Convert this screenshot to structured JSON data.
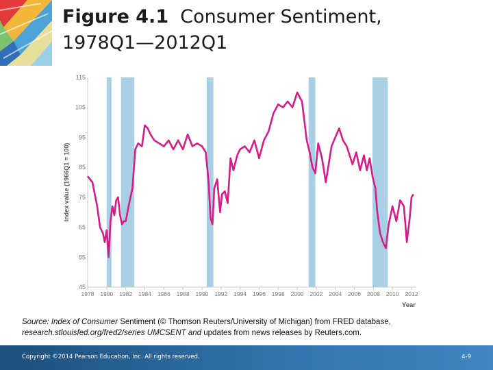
{
  "title": {
    "bold": "Figure 4.1",
    "rest": "Consumer Sentiment,",
    "line2": "1978Q1—2012Q1"
  },
  "source": {
    "label": "Source:",
    "italic1": "Index of Consumer",
    "plain1": "Sentiment (© Thomson Reuters/University of Michigan) from FRED database,",
    "italic2": "research.stlouisfed.org/fred2/series UMCSENT and",
    "plain2": "updates from news releases by Reuters.com."
  },
  "footer": {
    "copyright": "Copyright ©2014 Pearson Education, Inc. All rights reserved.",
    "page": "4-9"
  },
  "colors": {
    "line": "#d81b87",
    "recession": "#a9cfe6",
    "footer": "#2a66a0"
  },
  "chart_data": {
    "type": "line",
    "ylabel": "Index value (1966Q1 = 100)",
    "xlabel": "Year",
    "ylim": [
      45,
      115
    ],
    "xlim": [
      1978,
      2012.5
    ],
    "yticks": [
      45,
      55,
      65,
      75,
      85,
      95,
      105,
      115
    ],
    "xticks": [
      "1978",
      "1980",
      "1982",
      "1984",
      "1986",
      "1988",
      "1990",
      "1992",
      "1994",
      "1996",
      "1998",
      "2000",
      "2002",
      "2004",
      "2006",
      "2008",
      "2010",
      "2012"
    ],
    "recessions": [
      [
        1980.0,
        1980.5
      ],
      [
        1981.5,
        1982.9
      ],
      [
        1990.5,
        1991.2
      ],
      [
        2001.2,
        2001.9
      ],
      [
        2007.9,
        2009.5
      ]
    ],
    "series": [
      {
        "x": [
          1978.0,
          1978.5,
          1979.0,
          1979.3,
          1979.6,
          1979.8,
          1980.0,
          1980.2,
          1980.4,
          1980.6,
          1980.8,
          1981.0,
          1981.2,
          1981.4,
          1981.6,
          1981.8,
          1982.0,
          1982.3,
          1982.7,
          1983.0,
          1983.3,
          1983.7,
          1984.0,
          1984.3,
          1984.6,
          1985.0,
          1985.5,
          1986.0,
          1986.5,
          1987.0,
          1987.5,
          1988.0,
          1988.5,
          1989.0,
          1989.5,
          1990.0,
          1990.4,
          1990.7,
          1990.9,
          1991.1,
          1991.3,
          1991.6,
          1991.9,
          1992.1,
          1992.4,
          1992.7,
          1993.0,
          1993.3,
          1993.7,
          1994.0,
          1994.5,
          1995.0,
          1995.5,
          1996.0,
          1996.5,
          1997.0,
          1997.5,
          1998.0,
          1998.5,
          1999.0,
          1999.5,
          2000.0,
          2000.5,
          2001.0,
          2001.3,
          2001.6,
          2001.9,
          2002.2,
          2002.6,
          2003.0,
          2003.3,
          2003.6,
          2004.0,
          2004.4,
          2004.8,
          2005.2,
          2005.6,
          2005.8,
          2006.2,
          2006.6,
          2007.0,
          2007.3,
          2007.6,
          2007.9,
          2008.2,
          2008.4,
          2008.7,
          2009.0,
          2009.3,
          2009.6,
          2010.0,
          2010.4,
          2010.8,
          2011.2,
          2011.5,
          2011.8,
          2012.0,
          2012.2
        ],
        "y": [
          82,
          80,
          72,
          65,
          63,
          60,
          64,
          55,
          67,
          72,
          69,
          74,
          75,
          69,
          66,
          67,
          67,
          72,
          78,
          91,
          93,
          92,
          99,
          98,
          96,
          94,
          93,
          92,
          94,
          91,
          94,
          91,
          96,
          92,
          93,
          92,
          90,
          80,
          68,
          66,
          78,
          81,
          70,
          76,
          77,
          73,
          88,
          84,
          89,
          91,
          92,
          90,
          94,
          88,
          94,
          97,
          103,
          106,
          105,
          107,
          105,
          110,
          107,
          94,
          90,
          85,
          83,
          93,
          88,
          80,
          86,
          92,
          95,
          98,
          94,
          92,
          88,
          86,
          90,
          84,
          89,
          84,
          88,
          82,
          78,
          70,
          63,
          60,
          58,
          66,
          72,
          67,
          74,
          72,
          60,
          68,
          75,
          76
        ],
        "values": [
          82,
          80,
          72,
          65,
          63,
          60,
          64,
          55,
          67,
          72,
          69,
          74,
          75,
          69,
          66,
          67,
          67,
          72,
          78,
          91,
          93,
          92,
          99,
          98,
          96,
          94,
          93,
          92,
          94,
          91,
          94,
          91,
          96,
          92,
          93,
          92,
          90,
          80,
          68,
          66,
          78,
          81,
          70,
          76,
          77,
          73,
          88,
          84,
          89,
          91,
          92,
          90,
          94,
          88,
          94,
          97,
          103,
          106,
          105,
          107,
          105,
          110,
          107,
          94,
          90,
          85,
          83,
          93,
          88,
          80,
          86,
          92,
          95,
          98,
          94,
          92,
          88,
          86,
          90,
          84,
          89,
          84,
          88,
          82,
          78,
          70,
          63,
          60,
          58,
          66,
          72,
          67,
          74,
          72,
          60,
          68,
          75,
          76
        ]
      }
    ]
  }
}
